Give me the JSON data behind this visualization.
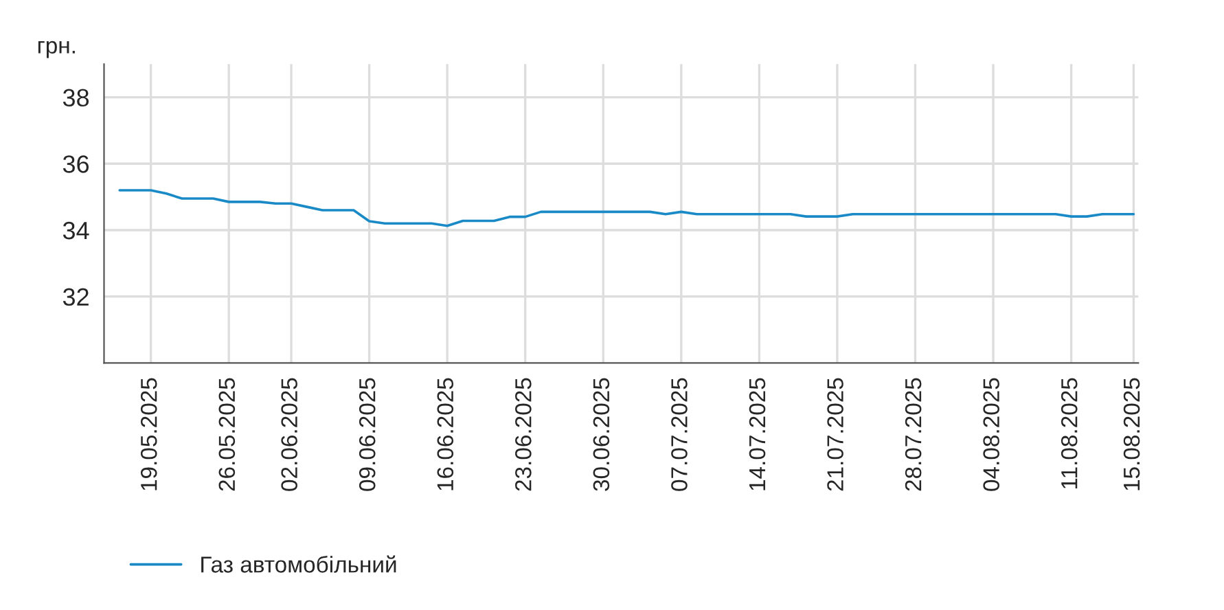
{
  "chart_data": {
    "type": "line",
    "ylabel": "грн.",
    "categories": [
      null,
      null,
      "19.05.2025",
      null,
      null,
      null,
      null,
      "26.05.2025",
      null,
      null,
      null,
      "02.06.2025",
      null,
      null,
      null,
      null,
      "09.06.2025",
      null,
      null,
      null,
      null,
      "16.06.2025",
      null,
      null,
      null,
      null,
      "23.06.2025",
      null,
      null,
      null,
      null,
      "30.06.2025",
      null,
      null,
      null,
      null,
      "07.07.2025",
      null,
      null,
      null,
      null,
      "14.07.2025",
      null,
      null,
      null,
      null,
      "21.07.2025",
      null,
      null,
      null,
      null,
      "28.07.2025",
      null,
      null,
      null,
      null,
      "04.08.2025",
      null,
      null,
      null,
      null,
      "11.08.2025",
      null,
      null,
      null,
      "15.08.2025"
    ],
    "series": [
      {
        "name": "Газ автомобільний",
        "color": "#1a8ac6",
        "values": [
          35.2,
          35.2,
          35.2,
          35.1,
          34.95,
          34.95,
          34.95,
          34.85,
          34.85,
          34.85,
          34.8,
          34.8,
          34.7,
          34.6,
          34.6,
          34.6,
          34.27,
          34.2,
          34.2,
          34.2,
          34.2,
          34.13,
          34.28,
          34.28,
          34.28,
          34.4,
          34.4,
          34.55,
          34.55,
          34.55,
          34.55,
          34.55,
          34.55,
          34.55,
          34.55,
          34.48,
          34.55,
          34.48,
          34.48,
          34.48,
          34.48,
          34.48,
          34.48,
          34.48,
          34.41,
          34.41,
          34.41,
          34.48,
          34.48,
          34.48,
          34.48,
          34.48,
          34.48,
          34.48,
          34.48,
          34.48,
          34.48,
          34.48,
          34.48,
          34.48,
          34.48,
          34.41,
          34.41,
          34.48,
          34.48,
          34.48
        ]
      }
    ],
    "ylim": [
      30,
      39
    ],
    "yticks": [
      32,
      34,
      36,
      38
    ],
    "grid": true,
    "legend": "bottom left",
    "marker": "none",
    "line_style": "solid"
  }
}
